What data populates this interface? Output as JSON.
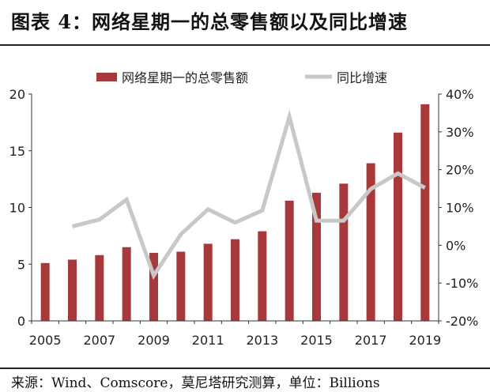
{
  "title": "图表 4：网络星期一的总零售额以及同比增速",
  "source": "来源：Wind、Comscore，莫尼塔研究测算，单位：Billions",
  "colors": {
    "bar": "#a8393a",
    "line": "#c8c8c8",
    "axis": "#333333",
    "text": "#222222"
  },
  "chart_data": {
    "type": "bar",
    "title": "",
    "categories": [
      "2005",
      "2006",
      "2007",
      "2008",
      "2009",
      "2010",
      "2011",
      "2012",
      "2013",
      "2014",
      "2015",
      "2016",
      "2017",
      "2018",
      "2019"
    ],
    "x_tick_labels": [
      "2005",
      "2007",
      "2009",
      "2011",
      "2013",
      "2015",
      "2017",
      "2019"
    ],
    "series": [
      {
        "name": "网络星期一的总零售额",
        "type": "bar",
        "axis": "left",
        "values": [
          5.1,
          5.4,
          5.8,
          6.5,
          6.0,
          6.1,
          6.8,
          7.2,
          7.9,
          10.6,
          11.3,
          12.1,
          13.9,
          16.6,
          19.1
        ]
      },
      {
        "name": "同比增速",
        "type": "line",
        "axis": "right",
        "values": [
          null,
          0.05,
          0.068,
          0.121,
          -0.08,
          0.029,
          0.095,
          0.06,
          0.092,
          0.34,
          0.065,
          0.065,
          0.149,
          0.19,
          0.152
        ]
      }
    ],
    "y_left": {
      "lim": [
        0,
        20
      ],
      "ticks": [
        "0",
        "5",
        "10",
        "15",
        "20"
      ],
      "tick_values": [
        0,
        5,
        10,
        15,
        20
      ]
    },
    "y_right": {
      "lim": [
        -0.2,
        0.4
      ],
      "ticks": [
        "-20%",
        "-10%",
        "0%",
        "10%",
        "20%",
        "30%",
        "40%"
      ],
      "tick_values": [
        -0.2,
        -0.1,
        0,
        0.1,
        0.2,
        0.3,
        0.4
      ]
    },
    "legend_position": "top",
    "grid": false
  }
}
